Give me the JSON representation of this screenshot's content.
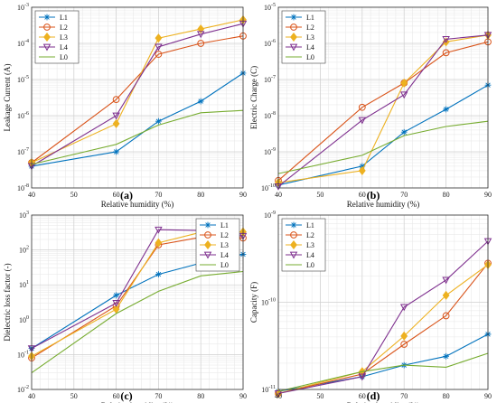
{
  "chart_data": [
    {
      "type": "line",
      "panel_label": "(a)",
      "xlabel": "Relative humidity (%)",
      "ylabel": "Leakage Current (A)",
      "yscale": "log",
      "x": [
        40,
        60,
        70,
        80,
        90
      ],
      "xlim": [
        40,
        90
      ],
      "xticks": [
        "40",
        "50",
        "60",
        "70",
        "80",
        "90"
      ],
      "ylim_exp": [
        -8,
        -3
      ],
      "grid": true,
      "legend_position": "top-left",
      "series": [
        {
          "name": "L1",
          "values": [
            4e-08,
            1e-07,
            7e-07,
            2.5e-06,
            1.5e-05
          ]
        },
        {
          "name": "L2",
          "values": [
            5e-08,
            2.8e-06,
            5e-05,
            0.0001,
            0.00016
          ]
        },
        {
          "name": "L3",
          "values": [
            5e-08,
            6e-07,
            0.00014,
            0.00025,
            0.00045
          ]
        },
        {
          "name": "L4",
          "values": [
            4e-08,
            1e-06,
            8e-05,
            0.00018,
            0.00035
          ]
        },
        {
          "name": "L0",
          "values": [
            4.5e-08,
            1.6e-07,
            5.5e-07,
            1.2e-06,
            1.4e-06
          ]
        }
      ]
    },
    {
      "type": "line",
      "panel_label": "(b)",
      "xlabel": "Relative humidity (%)",
      "ylabel": "Electric Charge (C)",
      "yscale": "log",
      "x": [
        40,
        60,
        70,
        80,
        90
      ],
      "xlim": [
        40,
        90
      ],
      "xticks": [
        "40",
        "50",
        "60",
        "70",
        "80",
        "90"
      ],
      "ylim_exp": [
        -10,
        -5
      ],
      "grid": true,
      "legend_position": "top-left",
      "series": [
        {
          "name": "L1",
          "values": [
            1.2e-10,
            4e-10,
            3.5e-09,
            1.5e-08,
            7e-08
          ]
        },
        {
          "name": "L2",
          "values": [
            1.6e-10,
            1.7e-08,
            8e-08,
            5.5e-07,
            1.1e-06
          ]
        },
        {
          "name": "L3",
          "values": [
            1.4e-10,
            3e-10,
            8e-08,
            1.1e-06,
            1.7e-06
          ]
        },
        {
          "name": "L4",
          "values": [
            1.1e-10,
            7.5e-09,
            3.8e-08,
            1.3e-06,
            1.7e-06
          ]
        },
        {
          "name": "L0",
          "values": [
            2.5e-10,
            8e-10,
            2.8e-09,
            5e-09,
            7e-09
          ]
        }
      ]
    },
    {
      "type": "line",
      "panel_label": "(c)",
      "xlabel": "Relative humidity (%)",
      "ylabel": "Dielectric loss factor (-)",
      "yscale": "log",
      "x": [
        40,
        60,
        70,
        80,
        90
      ],
      "xlim": [
        40,
        90
      ],
      "xticks": [
        "40",
        "50",
        "60",
        "70",
        "80",
        "90"
      ],
      "ylim_exp": [
        -2,
        3
      ],
      "grid": true,
      "legend_position": "top-right",
      "series": [
        {
          "name": "L1",
          "values": [
            0.15,
            5,
            20,
            42,
            75
          ]
        },
        {
          "name": "L2",
          "values": [
            0.08,
            2.5,
            140,
            230,
            220
          ]
        },
        {
          "name": "L3",
          "values": [
            0.09,
            2,
            160,
            320,
            330
          ]
        },
        {
          "name": "L4",
          "values": [
            0.15,
            3,
            380,
            360,
            250
          ]
        },
        {
          "name": "L0",
          "values": [
            0.03,
            1.5,
            6.5,
            18,
            24
          ]
        }
      ]
    },
    {
      "type": "line",
      "panel_label": "(d)",
      "xlabel": "Relative humidity (%)",
      "ylabel": "Capacity (F)",
      "yscale": "log",
      "x": [
        40,
        60,
        70,
        80,
        90
      ],
      "xlim": [
        40,
        90
      ],
      "xticks": [
        "40",
        "50",
        "60",
        "70",
        "80",
        "90"
      ],
      "ylim_exp": [
        -11,
        -9
      ],
      "grid": true,
      "legend_position": "top-left",
      "series": [
        {
          "name": "L1",
          "values": [
            9.5e-12,
            1.4e-11,
            1.9e-11,
            2.4e-11,
            4.3e-11
          ]
        },
        {
          "name": "L2",
          "values": [
            9e-12,
            1.5e-11,
            3.3e-11,
            7e-11,
            2.8e-10
          ]
        },
        {
          "name": "L3",
          "values": [
            9e-12,
            1.6e-11,
            4.1e-11,
            1.2e-10,
            2.7e-10
          ]
        },
        {
          "name": "L4",
          "values": [
            9e-12,
            1.4e-11,
            8.8e-11,
            1.8e-10,
            5e-10
          ]
        },
        {
          "name": "L0",
          "values": [
            9.5e-12,
            1.6e-11,
            1.9e-11,
            1.8e-11,
            2.6e-11
          ]
        }
      ]
    }
  ],
  "series_colors": {
    "L1": "#0072BD",
    "L2": "#D95319",
    "L3": "#EDB120",
    "L4": "#7E2F8E",
    "L0": "#77AC30"
  },
  "series_markers": {
    "L1": "asterisk",
    "L2": "circle",
    "L3": "diamond",
    "L4": "triangle-down",
    "L0": "none"
  }
}
